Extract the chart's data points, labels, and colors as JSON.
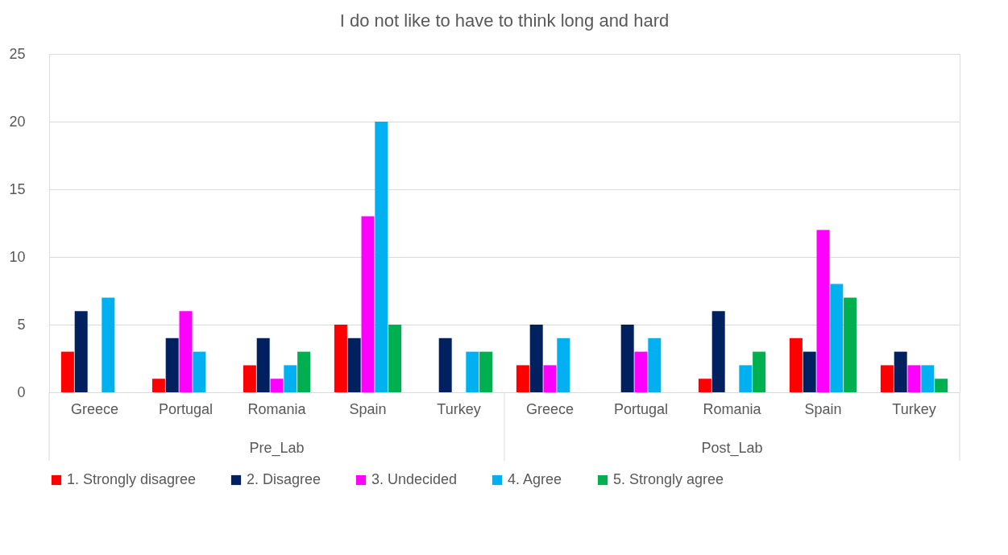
{
  "chart_data": {
    "type": "bar",
    "title": "I do not like to have to think long and hard",
    "categories": [
      "Greece",
      "Portugal",
      "Romania",
      "Spain",
      "Turkey",
      "Greece",
      "Portugal",
      "Romania",
      "Spain",
      "Turkey"
    ],
    "series": [
      {
        "name": "1. Strongly disagree",
        "color": "#ff0000",
        "values": [
          3,
          1,
          2,
          5,
          0,
          2,
          0,
          1,
          4,
          2
        ]
      },
      {
        "name": "2. Disagree",
        "color": "#002060",
        "values": [
          6,
          4,
          4,
          4,
          4,
          5,
          5,
          6,
          3,
          3
        ]
      },
      {
        "name": "3. Undecided",
        "color": "#ff00ff",
        "values": [
          0,
          6,
          1,
          13,
          0,
          2,
          3,
          0,
          12,
          2
        ]
      },
      {
        "name": "4. Agree",
        "color": "#00b0f0",
        "values": [
          7,
          3,
          2,
          20,
          3,
          4,
          4,
          2,
          8,
          2
        ]
      },
      {
        "name": "5. Strongly agree",
        "color": "#00b050",
        "values": [
          0,
          0,
          3,
          5,
          3,
          0,
          0,
          3,
          7,
          1
        ]
      }
    ],
    "annotations": [
      "Pre_Lab",
      "Post_Lab"
    ],
    "ylim": [
      0,
      25
    ],
    "yticks": [
      0,
      5,
      10,
      15,
      20,
      25
    ],
    "grid": "y",
    "legend": "bottom"
  }
}
